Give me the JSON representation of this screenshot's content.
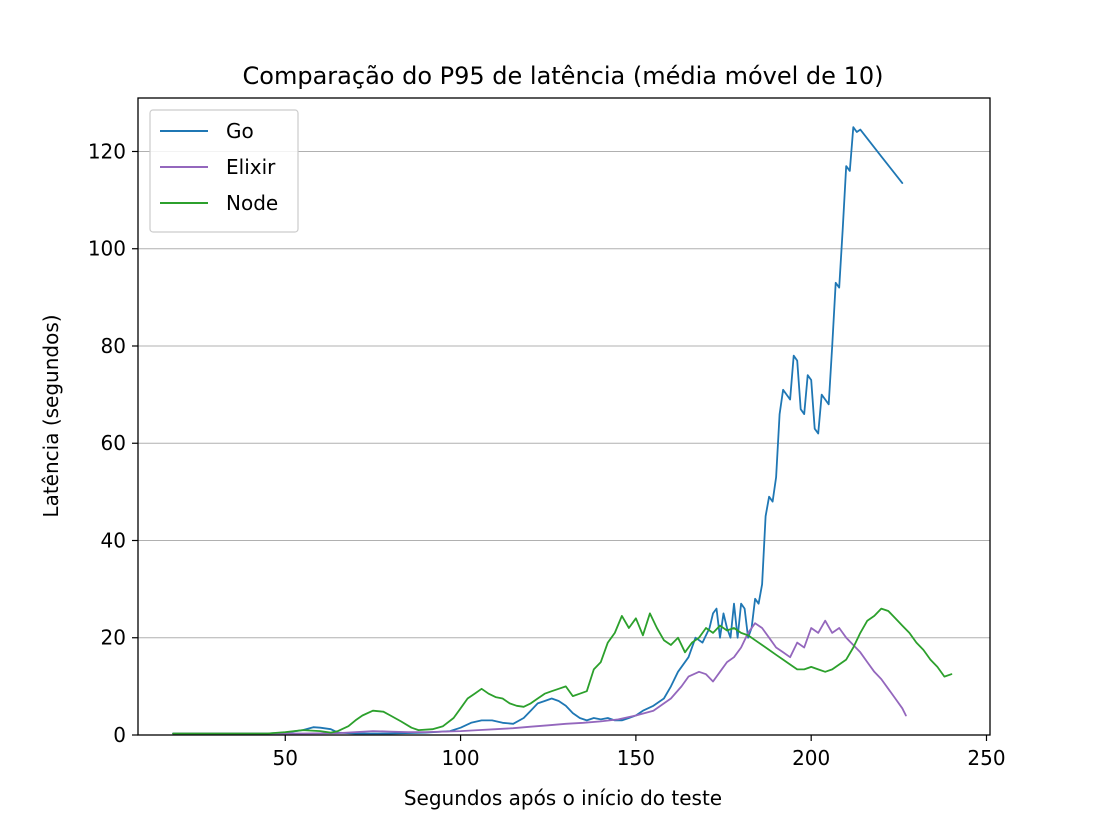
{
  "chart_data": {
    "type": "line",
    "title": "Comparação do P95 de latência (média móvel de 10)",
    "xlabel": "Segundos após o início do teste",
    "ylabel": "Latência (segundos)",
    "xlim": [
      8,
      251
    ],
    "ylim": [
      0,
      131
    ],
    "xticks": [
      50,
      100,
      150,
      200,
      250
    ],
    "yticks": [
      0,
      20,
      40,
      60,
      80,
      100,
      120
    ],
    "xtick_labels": [
      "50",
      "100",
      "150",
      "200",
      "250"
    ],
    "ytick_labels": [
      "0",
      "20",
      "40",
      "60",
      "80",
      "100",
      "120"
    ],
    "grid": "horizontal",
    "legend_position": "upper-left",
    "series": [
      {
        "name": "Go",
        "color": "#1f77b4",
        "x": [
          18,
          30,
          45,
          50,
          55,
          58,
          60,
          63,
          65,
          70,
          80,
          90,
          97,
          100,
          103,
          106,
          109,
          112,
          115,
          118,
          120,
          122,
          124,
          126,
          128,
          130,
          132,
          134,
          136,
          138,
          140,
          142,
          144,
          146,
          148,
          150,
          152,
          155,
          158,
          160,
          162,
          165,
          167,
          169,
          171,
          172,
          173,
          174,
          175,
          176,
          177,
          178,
          179,
          180,
          181,
          182,
          183,
          184,
          185,
          186,
          187,
          188,
          189,
          190,
          191,
          192,
          193,
          194,
          195,
          196,
          197,
          198,
          199,
          200,
          201,
          202,
          203,
          204,
          205,
          206,
          207,
          208,
          209,
          210,
          211,
          212,
          213,
          214,
          220,
          226
        ],
        "y": [
          0.3,
          0.3,
          0.3,
          0.5,
          1.0,
          1.6,
          1.5,
          1.2,
          0.5,
          0.3,
          0.3,
          0.5,
          0.8,
          1.5,
          2.5,
          3.0,
          3.0,
          2.5,
          2.3,
          3.5,
          5.0,
          6.5,
          7.0,
          7.5,
          7.0,
          6.0,
          4.5,
          3.5,
          3.0,
          3.5,
          3.2,
          3.5,
          3.0,
          3.0,
          3.5,
          4.0,
          5.0,
          6.0,
          7.5,
          10.0,
          13.0,
          16.0,
          20.0,
          19.0,
          22.0,
          25.0,
          26.0,
          20.0,
          25.0,
          22.0,
          20.0,
          27.0,
          20.0,
          27.0,
          26.0,
          20.0,
          22.0,
          28.0,
          27.0,
          31.0,
          45.0,
          49.0,
          48.0,
          53.0,
          66.0,
          71.0,
          70.0,
          69.0,
          78.0,
          77.0,
          67.0,
          66.0,
          74.0,
          73.0,
          63.0,
          62.0,
          70.0,
          69.0,
          68.0,
          80.0,
          93.0,
          92.0,
          104.0,
          117.0,
          116.0,
          125.0,
          124.0,
          124.5,
          119.0,
          113.5
        ]
      },
      {
        "name": "Elixir",
        "color": "#9467bd",
        "x": [
          18,
          30,
          45,
          55,
          65,
          70,
          75,
          80,
          85,
          90,
          95,
          100,
          105,
          110,
          115,
          120,
          125,
          130,
          135,
          140,
          145,
          150,
          155,
          160,
          163,
          165,
          168,
          170,
          172,
          174,
          176,
          178,
          180,
          182,
          184,
          186,
          188,
          190,
          192,
          194,
          196,
          198,
          200,
          202,
          204,
          206,
          208,
          210,
          212,
          214,
          216,
          218,
          220,
          222,
          224,
          226,
          227
        ],
        "y": [
          0.3,
          0.3,
          0.3,
          0.3,
          0.4,
          0.6,
          0.8,
          0.7,
          0.6,
          0.6,
          0.7,
          0.8,
          1.0,
          1.2,
          1.4,
          1.7,
          2.0,
          2.3,
          2.5,
          2.8,
          3.2,
          4.0,
          5.0,
          7.5,
          10.0,
          12.0,
          13.0,
          12.5,
          11.0,
          13.0,
          15.0,
          16.0,
          18.0,
          21.0,
          23.0,
          22.0,
          20.0,
          18.0,
          17.0,
          16.0,
          19.0,
          18.0,
          22.0,
          21.0,
          23.5,
          21.0,
          22.0,
          20.0,
          18.5,
          17.0,
          15.0,
          13.0,
          11.5,
          9.5,
          7.5,
          5.5,
          4.0
        ]
      },
      {
        "name": "Node",
        "color": "#2ca02c",
        "x": [
          18,
          25,
          35,
          45,
          50,
          55,
          60,
          63,
          65,
          68,
          70,
          72,
          75,
          78,
          80,
          83,
          86,
          88,
          92,
          95,
          98,
          100,
          102,
          104,
          106,
          108,
          110,
          112,
          114,
          116,
          118,
          120,
          122,
          124,
          126,
          128,
          130,
          132,
          134,
          136,
          138,
          140,
          142,
          144,
          146,
          148,
          150,
          152,
          154,
          156,
          158,
          160,
          162,
          164,
          166,
          168,
          170,
          172,
          174,
          176,
          178,
          180,
          182,
          184,
          186,
          188,
          190,
          192,
          194,
          196,
          198,
          200,
          202,
          204,
          206,
          208,
          210,
          212,
          214,
          216,
          218,
          220,
          222,
          224,
          226,
          228,
          230,
          232,
          234,
          236,
          238,
          240
        ],
        "y": [
          0.3,
          0.3,
          0.3,
          0.3,
          0.6,
          1.0,
          0.8,
          0.5,
          0.8,
          1.8,
          3.0,
          4.0,
          5.0,
          4.8,
          4.0,
          2.8,
          1.5,
          1.0,
          1.2,
          1.8,
          3.5,
          5.5,
          7.5,
          8.5,
          9.5,
          8.5,
          7.8,
          7.5,
          6.5,
          6.0,
          5.8,
          6.5,
          7.5,
          8.5,
          9.0,
          9.5,
          10.0,
          8.0,
          8.5,
          9.0,
          13.5,
          15.0,
          19.0,
          21.0,
          24.5,
          22.0,
          24.0,
          20.5,
          25.0,
          22.0,
          19.5,
          18.5,
          20.0,
          17.0,
          19.0,
          20.0,
          22.0,
          21.0,
          22.5,
          21.5,
          22.0,
          21.0,
          20.5,
          19.5,
          18.5,
          17.5,
          16.5,
          15.5,
          14.5,
          13.5,
          13.5,
          14.0,
          13.5,
          13.0,
          13.5,
          14.5,
          15.5,
          18.0,
          21.0,
          23.5,
          24.5,
          26.0,
          25.5,
          24.0,
          22.5,
          21.0,
          19.0,
          17.5,
          15.5,
          14.0,
          12.0,
          12.5
        ]
      }
    ]
  }
}
